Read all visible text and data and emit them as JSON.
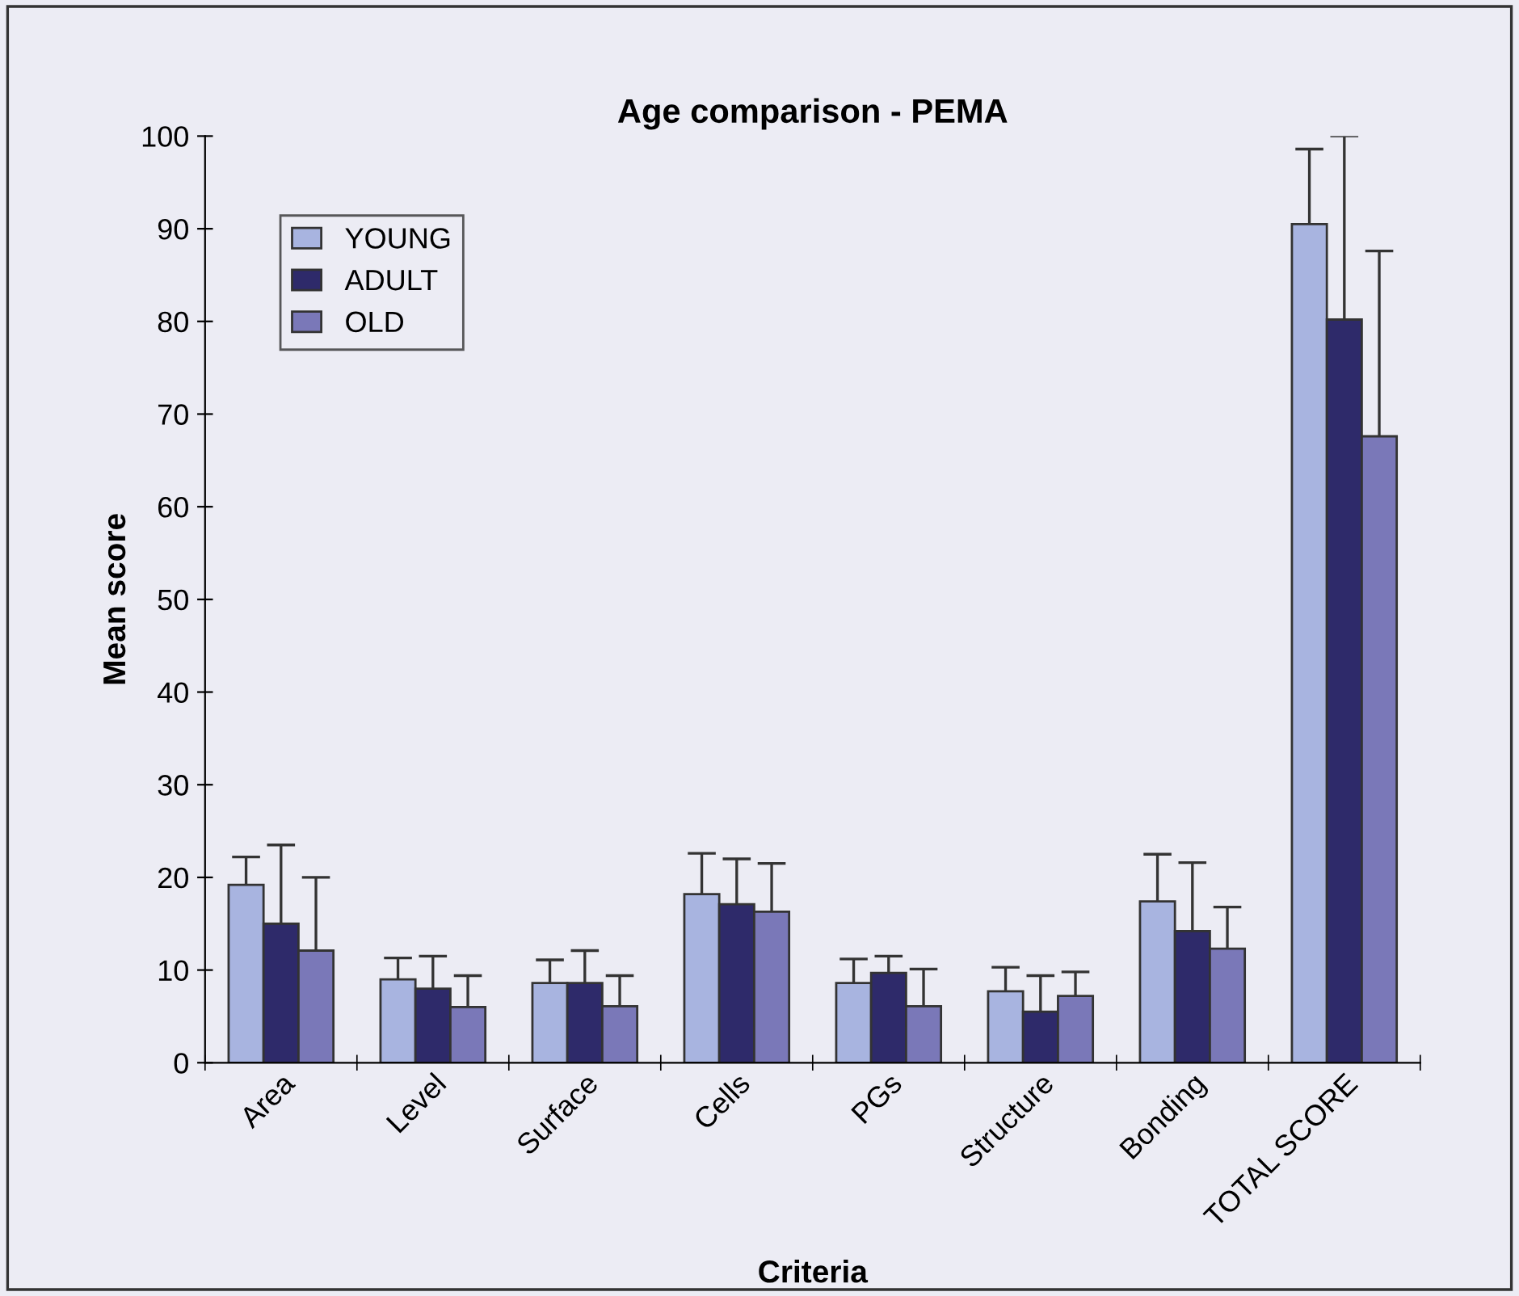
{
  "chart_data": {
    "type": "bar",
    "title": "Age comparison - PEMA",
    "xlabel": "Criteria",
    "ylabel": "Mean score",
    "categories": [
      "Area",
      "Level",
      "Surface",
      "Cells",
      "PGs",
      "Structure",
      "Bonding",
      "TOTAL SCORE"
    ],
    "series": [
      {
        "name": "YOUNG",
        "color": "#a8b4e0",
        "values": [
          19.2,
          9.0,
          8.6,
          18.2,
          8.6,
          7.7,
          17.4,
          90.5
        ],
        "errors": [
          [
            19.2,
            22.2
          ],
          [
            9.0,
            11.3
          ],
          [
            8.6,
            11.1
          ],
          [
            18.2,
            22.6
          ],
          [
            8.6,
            11.2
          ],
          [
            7.7,
            10.3
          ],
          [
            17.4,
            22.5
          ],
          [
            90.5,
            98.6
          ]
        ]
      },
      {
        "name": "ADULT",
        "color": "#2e2a6a",
        "values": [
          15.0,
          8.0,
          8.6,
          17.1,
          9.7,
          5.5,
          14.2,
          80.2
        ],
        "errors": [
          [
            15.0,
            23.5
          ],
          [
            8.0,
            11.5
          ],
          [
            8.6,
            12.1
          ],
          [
            17.1,
            22.0
          ],
          [
            9.7,
            11.5
          ],
          [
            5.5,
            9.4
          ],
          [
            14.2,
            21.6
          ],
          [
            80.2,
            100
          ]
        ]
      },
      {
        "name": "OLD",
        "color": "#7a78b8",
        "values": [
          12.1,
          6.0,
          6.1,
          16.3,
          6.1,
          7.2,
          12.3,
          67.6
        ],
        "errors": [
          [
            12.1,
            20.0
          ],
          [
            6.0,
            9.4
          ],
          [
            6.1,
            9.4
          ],
          [
            16.3,
            21.5
          ],
          [
            6.1,
            10.1
          ],
          [
            7.2,
            9.8
          ],
          [
            12.3,
            16.8
          ],
          [
            67.6,
            87.6
          ]
        ]
      }
    ],
    "ylim": [
      0,
      100
    ],
    "yticks": [
      0,
      10,
      20,
      30,
      40,
      50,
      60,
      70,
      80,
      90,
      100
    ],
    "legend": "top left",
    "grid": false
  }
}
